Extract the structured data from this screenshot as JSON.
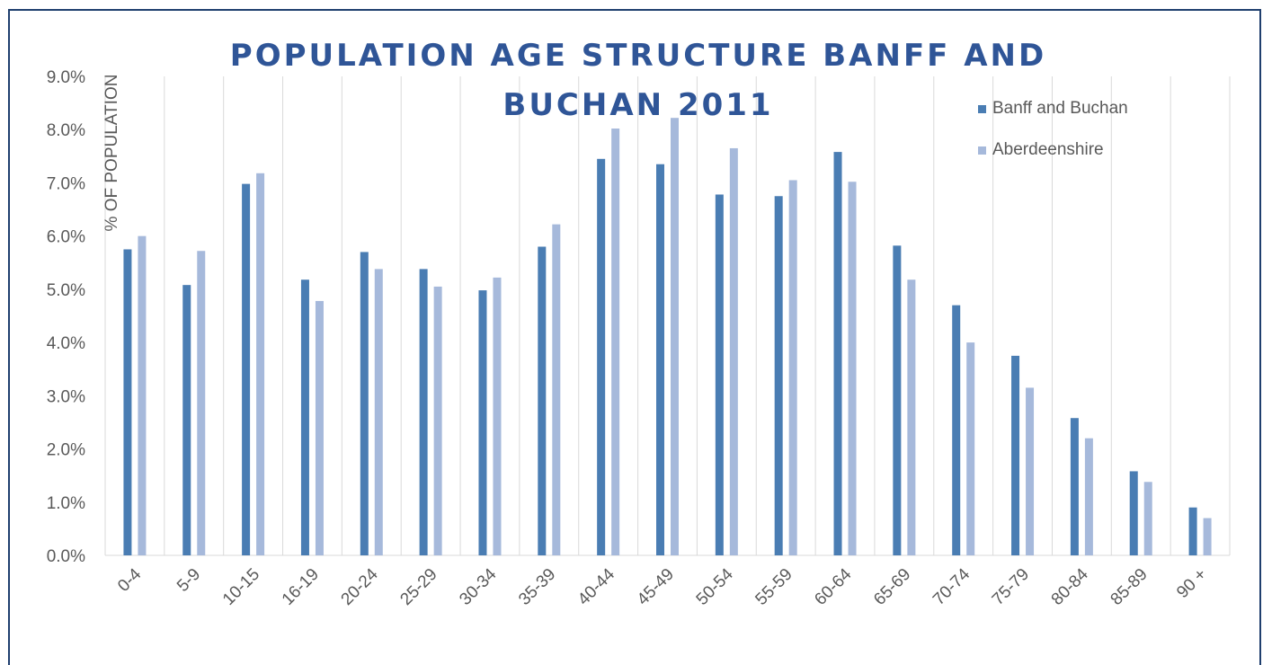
{
  "chart_data": {
    "type": "bar",
    "title": [
      "POPULATION AGE STRUCTURE BANFF AND",
      "BUCHAN 2011"
    ],
    "y_label": "% OF POPULATION",
    "categories": [
      "0-4",
      "5-9",
      "10-15",
      "16-19",
      "20-24",
      "25-29",
      "30-34",
      "35-39",
      "40-44",
      "45-49",
      "50-54",
      "55-59",
      "60-64",
      "65-69",
      "70-74",
      "75-79",
      "80-84",
      "85-89",
      "90 +"
    ],
    "series": [
      {
        "name": "Banff and Buchan",
        "color": "#4a7db3",
        "values": [
          5.75,
          5.08,
          6.98,
          5.18,
          5.7,
          5.38,
          4.98,
          5.8,
          7.45,
          7.35,
          6.78,
          6.75,
          7.58,
          5.82,
          4.7,
          3.75,
          2.58,
          1.58,
          0.9
        ]
      },
      {
        "name": "Aberdeenshire",
        "color": "#a6b9db",
        "values": [
          6.0,
          5.72,
          7.18,
          4.78,
          5.38,
          5.05,
          5.22,
          6.22,
          8.02,
          8.22,
          7.65,
          7.05,
          7.02,
          5.18,
          4.0,
          3.15,
          2.2,
          1.38,
          0.7
        ]
      }
    ],
    "ylim": [
      0,
      9
    ],
    "yticks": [
      {
        "value": 0,
        "label": "0.0%"
      },
      {
        "value": 1,
        "label": "1.0%"
      },
      {
        "value": 2,
        "label": "2.0%"
      },
      {
        "value": 3,
        "label": "3.0%"
      },
      {
        "value": 4,
        "label": "4.0%"
      },
      {
        "value": 5,
        "label": "5.0%"
      },
      {
        "value": 6,
        "label": "6.0%"
      },
      {
        "value": 7,
        "label": "7.0%"
      },
      {
        "value": 8,
        "label": "8.0%"
      },
      {
        "value": 9,
        "label": "9.0%"
      }
    ],
    "grid": true,
    "legend": "top-right"
  }
}
